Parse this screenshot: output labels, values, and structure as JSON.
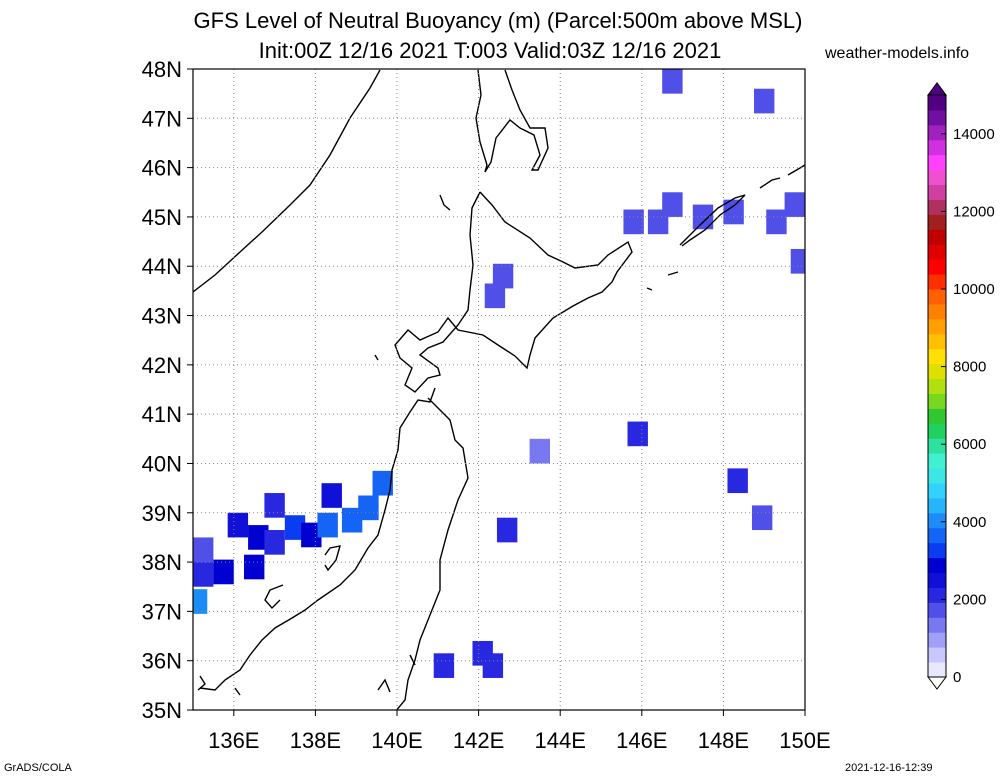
{
  "title_line1": "GFS Level of Neutral Buoyancy (m) (Parcel:500m above MSL)",
  "title_line2": "Init:00Z 12/16 2021 T:003 Valid:03Z 12/16 2021",
  "site": "weather-models.info",
  "footer_left": "GrADS/COLA",
  "footer_right": "2021-12-16-12:39",
  "map": {
    "lon_range": [
      135,
      150
    ],
    "lat_range": [
      35,
      48
    ],
    "lon_ticks": [
      "136E",
      "138E",
      "140E",
      "142E",
      "144E",
      "146E",
      "148E",
      "150E"
    ],
    "lat_ticks": [
      "35N",
      "36N",
      "37N",
      "38N",
      "39N",
      "40N",
      "41N",
      "42N",
      "43N",
      "44N",
      "45N",
      "46N",
      "47N",
      "48N"
    ],
    "grid": "dotted"
  },
  "colorbar": {
    "labels": [
      "0",
      "2000",
      "4000",
      "6000",
      "8000",
      "10000",
      "12000",
      "14000"
    ],
    "colors": [
      "#e8e8ff",
      "#c8c8ff",
      "#a0a0f8",
      "#7878f0",
      "#5050e8",
      "#2828e0",
      "#1010d8",
      "#0000d0",
      "#0a3cf0",
      "#1464f5",
      "#1e8cf8",
      "#28b4fb",
      "#32d2fa",
      "#3ce6e6",
      "#40f0d0",
      "#30e0a0",
      "#20d060",
      "#30c830",
      "#78d820",
      "#b0e010",
      "#e0e000",
      "#ffe000",
      "#ffc000",
      "#ffa000",
      "#ff8000",
      "#ff6000",
      "#ff3000",
      "#ff0000",
      "#e00000",
      "#c00000",
      "#a02020",
      "#b03060",
      "#d040a0",
      "#f050d0",
      "#ff40ff",
      "#d030e0",
      "#a020c0",
      "#7010a0",
      "#500080"
    ],
    "range": [
      0,
      15000
    ]
  },
  "field_cells": [
    {
      "lon": 146.75,
      "lat": 47.75,
      "v": 1600
    },
    {
      "lon": 149.0,
      "lat": 47.35,
      "v": 1600
    },
    {
      "lon": 146.75,
      "lat": 45.25,
      "v": 1600
    },
    {
      "lon": 146.4,
      "lat": 44.9,
      "v": 1600
    },
    {
      "lon": 147.5,
      "lat": 45.0,
      "v": 1600
    },
    {
      "lon": 148.25,
      "lat": 45.1,
      "v": 1600
    },
    {
      "lon": 149.3,
      "lat": 44.9,
      "v": 1600
    },
    {
      "lon": 149.75,
      "lat": 45.25,
      "v": 1600
    },
    {
      "lon": 145.8,
      "lat": 44.9,
      "v": 1600
    },
    {
      "lon": 149.9,
      "lat": 44.1,
      "v": 1600
    },
    {
      "lon": 142.6,
      "lat": 43.8,
      "v": 1800
    },
    {
      "lon": 142.4,
      "lat": 43.4,
      "v": 1800
    },
    {
      "lon": 145.9,
      "lat": 40.6,
      "v": 2100
    },
    {
      "lon": 143.5,
      "lat": 40.25,
      "v": 1500
    },
    {
      "lon": 148.35,
      "lat": 39.65,
      "v": 2000
    },
    {
      "lon": 148.95,
      "lat": 38.9,
      "v": 1900
    },
    {
      "lon": 142.7,
      "lat": 38.65,
      "v": 2000
    },
    {
      "lon": 141.15,
      "lat": 35.9,
      "v": 2100
    },
    {
      "lon": 142.1,
      "lat": 36.15,
      "v": 2100
    },
    {
      "lon": 142.35,
      "lat": 35.9,
      "v": 2100
    },
    {
      "lon": 135.25,
      "lat": 38.25,
      "v": 1800
    },
    {
      "lon": 135.25,
      "lat": 37.75,
      "v": 2200
    },
    {
      "lon": 135.75,
      "lat": 37.8,
      "v": 2700
    },
    {
      "lon": 136.5,
      "lat": 37.9,
      "v": 3000
    },
    {
      "lon": 136.1,
      "lat": 38.75,
      "v": 2400
    },
    {
      "lon": 136.6,
      "lat": 38.5,
      "v": 2900
    },
    {
      "lon": 137.0,
      "lat": 38.4,
      "v": 2000
    },
    {
      "lon": 137.5,
      "lat": 38.7,
      "v": 3200
    },
    {
      "lon": 137.9,
      "lat": 38.55,
      "v": 3000
    },
    {
      "lon": 138.3,
      "lat": 38.75,
      "v": 3600
    },
    {
      "lon": 138.9,
      "lat": 38.85,
      "v": 3800
    },
    {
      "lon": 138.4,
      "lat": 39.35,
      "v": 2600
    },
    {
      "lon": 139.3,
      "lat": 39.1,
      "v": 3800
    },
    {
      "lon": 139.65,
      "lat": 39.6,
      "v": 3700
    },
    {
      "lon": 135.1,
      "lat": 37.2,
      "v": 3900
    },
    {
      "lon": 137.0,
      "lat": 39.15,
      "v": 2000
    }
  ]
}
